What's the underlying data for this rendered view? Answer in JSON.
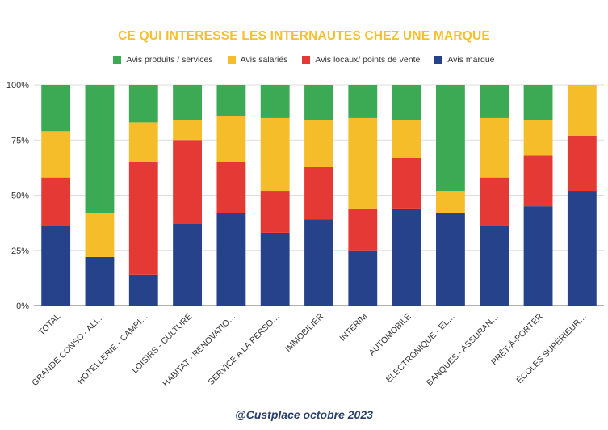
{
  "footer_text": "@Custplace octobre 2023",
  "chart_data": {
    "type": "bar",
    "stacked": true,
    "title": "CE QUI INTERESSE LES INTERNAUTES CHEZ UNE MARQUE",
    "categories": [
      "TOTAL",
      "GRANDE CONSO - ALI…",
      "HOTELLERIE - CAMPI…",
      "LOISIRS - CULTURE",
      "HABITAT - RENOVATIO…",
      "SERVICE A LA PERSO…",
      "IMMOBILIER",
      "INTERIM",
      "AUTOMOBILE",
      "ELECTRONIQUE - EL…",
      "BANQUES - ASSURAN…",
      "PRÊT-À-PORTER",
      "ÉCOLES SUPÉRIEUR…"
    ],
    "series": [
      {
        "name": "Avis marque",
        "color": "#26428b",
        "values": [
          36,
          22,
          14,
          37,
          42,
          33,
          39,
          25,
          44,
          42,
          36,
          45,
          52
        ]
      },
      {
        "name": "Avis locaux/ points de vente",
        "color": "#e53935",
        "values": [
          22,
          0,
          51,
          38,
          23,
          19,
          24,
          19,
          23,
          0,
          22,
          23,
          25
        ]
      },
      {
        "name": "Avis salariés",
        "color": "#f6bd2a",
        "values": [
          21,
          20,
          18,
          9,
          21,
          33,
          21,
          41,
          17,
          10,
          27,
          16,
          23
        ]
      },
      {
        "name": "Avis produits / services",
        "color": "#3caa55",
        "values": [
          21,
          58,
          17,
          16,
          14,
          15,
          16,
          15,
          16,
          48,
          15,
          16,
          0
        ]
      }
    ],
    "legend_order": [
      "Avis produits / services",
      "Avis salariés",
      "Avis locaux/ points de vente",
      "Avis marque"
    ],
    "yticks": [
      "0%",
      "25%",
      "50%",
      "75%",
      "100%"
    ],
    "ylim": [
      0,
      100
    ],
    "grid": true,
    "legend_position": "top"
  }
}
